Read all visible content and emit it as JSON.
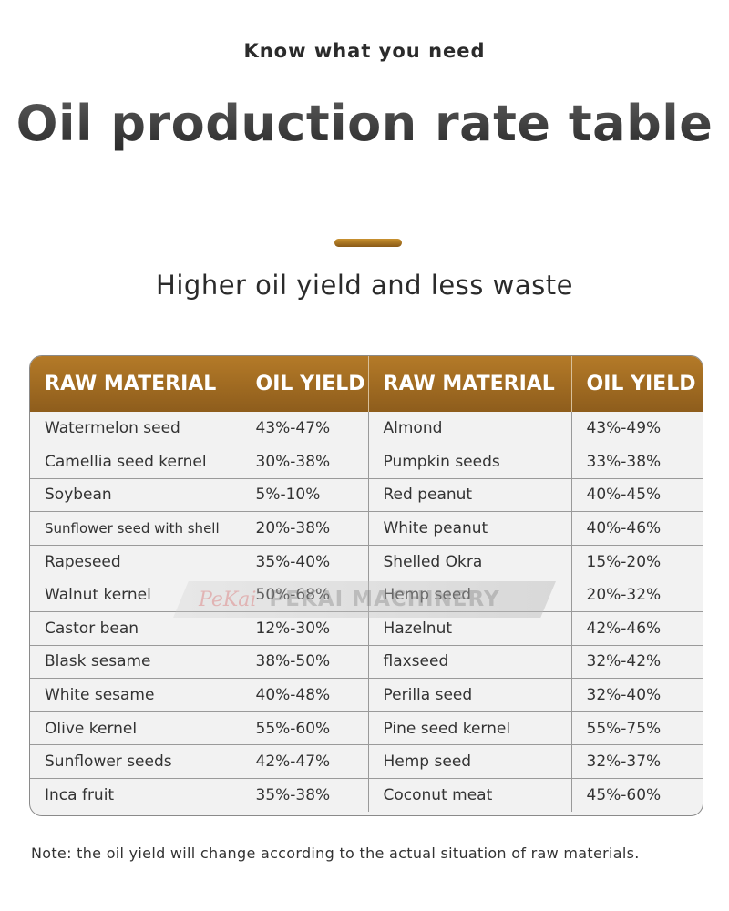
{
  "header": {
    "kicker": "Know what you need",
    "title": "Oil production rate table",
    "subtitle": "Higher oil yield and less waste"
  },
  "table": {
    "headers": [
      "RAW MATERIAL",
      "OIL YIELD",
      "RAW MATERIAL",
      "OIL YIELD"
    ],
    "rows": [
      [
        "Watermelon seed",
        "43%-47%",
        "Almond",
        "43%-49%"
      ],
      [
        "Camellia seed kernel",
        "30%-38%",
        "Pumpkin seeds",
        "33%-38%"
      ],
      [
        "Soybean",
        "5%-10%",
        "Red peanut",
        "40%-45%"
      ],
      [
        "Sunflower seed with shell",
        "20%-38%",
        "White peanut",
        "40%-46%"
      ],
      [
        "Rapeseed",
        "35%-40%",
        "Shelled Okra",
        "15%-20%"
      ],
      [
        "Walnut kernel",
        "50%-68%",
        "Hemp seed",
        "20%-32%"
      ],
      [
        "Castor bean",
        "12%-30%",
        "Hazelnut",
        "42%-46%"
      ],
      [
        "Blask sesame",
        "38%-50%",
        "flaxseed",
        "32%-42%"
      ],
      [
        "White sesame",
        "40%-48%",
        "Perilla seed",
        "32%-40%"
      ],
      [
        "Olive kernel",
        "55%-60%",
        "Pine seed kernel",
        "55%-75%"
      ],
      [
        "Sunflower seeds",
        "42%-47%",
        "Hemp seed",
        "32%-37%"
      ],
      [
        "Inca fruit",
        "35%-38%",
        "Coconut meat",
        "45%-60%"
      ]
    ]
  },
  "watermark": {
    "logo": "PeKai",
    "text": "PEKAI MACHINERY"
  },
  "note": "Note: the oil yield will change according to the actual situation of raw materials.",
  "colors": {
    "header_gold": "#a86f22",
    "accent_gold": "#b07a2a",
    "table_bg": "#f2f2f2",
    "text": "#333333"
  }
}
